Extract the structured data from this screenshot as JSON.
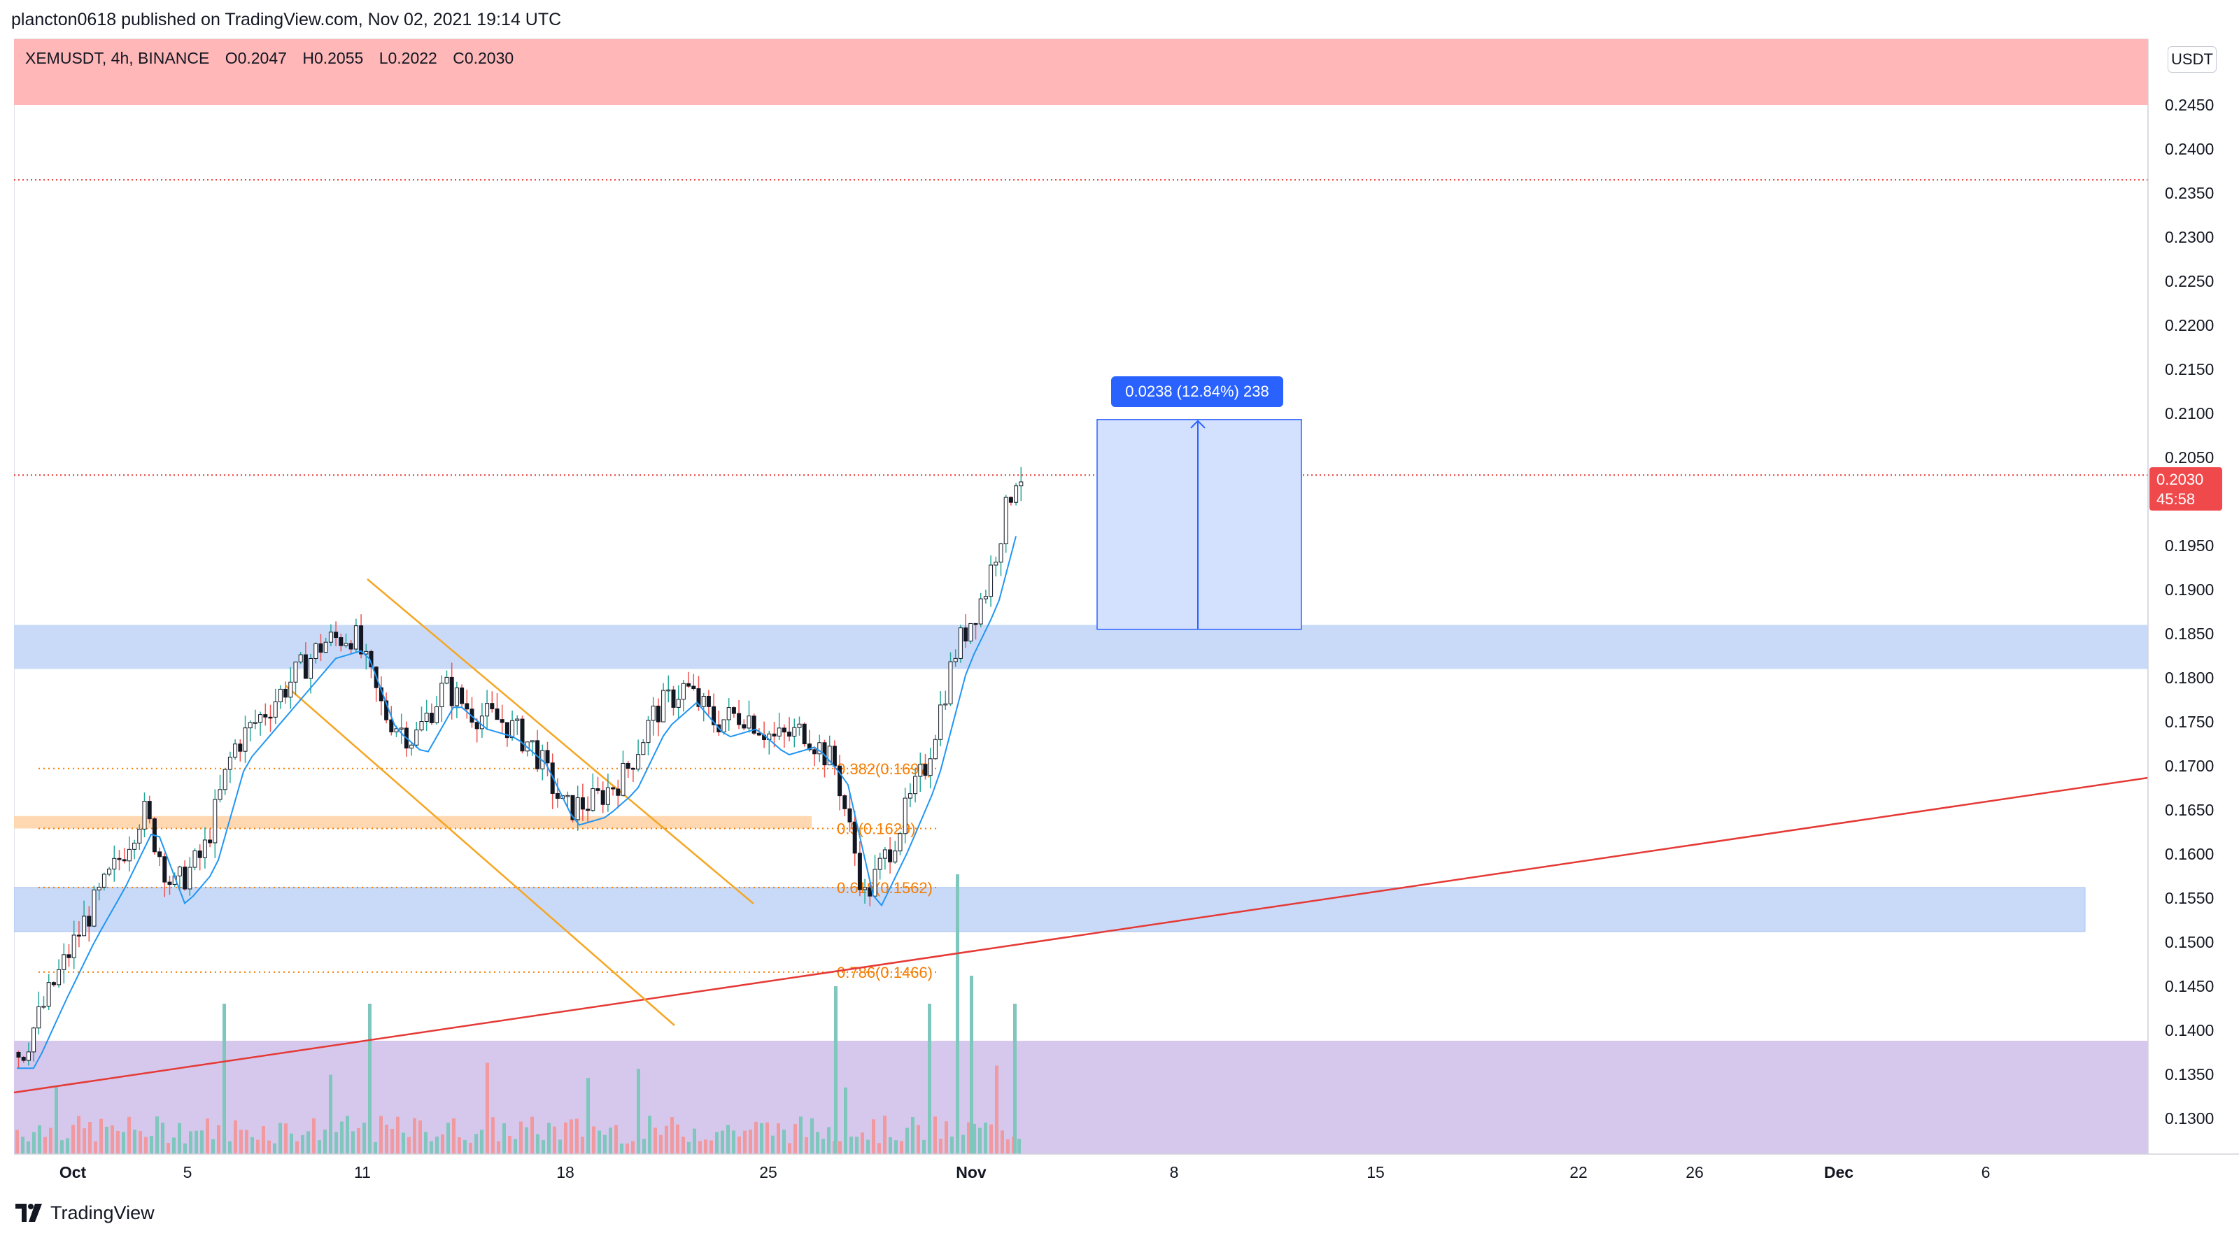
{
  "header": {
    "published": "plancton0618 published on TradingView.com, Nov 02, 2021 19:14 UTC"
  },
  "legend": {
    "symbol": "XEMUSDT, 4h, BINANCE",
    "open": "O0.2047",
    "high": "H0.2055",
    "low": "L0.2022",
    "close": "C0.2030"
  },
  "price_scale": {
    "currency": "USDT",
    "ticks": [
      "0.2450",
      "0.2400",
      "0.2350",
      "0.2300",
      "0.2250",
      "0.2200",
      "0.2150",
      "0.2100",
      "0.2050",
      "0.1950",
      "0.1900",
      "0.1850",
      "0.1800",
      "0.1750",
      "0.1700",
      "0.1650",
      "0.1600",
      "0.1550",
      "0.1500",
      "0.1450",
      "0.1400",
      "0.1350",
      "0.1300"
    ],
    "last_price": "0.2030",
    "countdown": "45:58",
    "last_price_color": "#f0494c"
  },
  "time_axis": {
    "labels": [
      "Oct",
      "5",
      "11",
      "18",
      "25",
      "Nov",
      "8",
      "15",
      "22",
      "26",
      "Dec",
      "6"
    ]
  },
  "measure": {
    "label": "0.0238 (12.84%) 238"
  },
  "fib_levels": [
    {
      "label": "0.382(0.1697)",
      "price": 0.1697
    },
    {
      "label": "0.5(0.1629)",
      "price": 0.1629
    },
    {
      "label": "0.618(0.1562)",
      "price": 0.1562
    },
    {
      "label": "0.786(0.1466)",
      "price": 0.1466
    }
  ],
  "zones": {
    "resistance_color": "#ffb7b8",
    "support_color": "#c9daf8",
    "volume_zone_color": "#d6c8ec",
    "fib_color": "#f57c00",
    "trendline_color": "#e53935",
    "ma_color": "#2196f3",
    "wedge_color": "#f5a623"
  },
  "footer": {
    "brand": "TradingView"
  },
  "chart_data": {
    "type": "candlestick",
    "symbol": "XEMUSDT",
    "timeframe": "4h",
    "exchange": "BINANCE",
    "ylim": [
      0.127,
      0.249
    ],
    "grid": false,
    "close_path": [
      [
        "Sep 29",
        0.1375
      ],
      [
        "Oct 1",
        0.145
      ],
      [
        "Oct 2",
        0.152
      ],
      [
        "Oct 3",
        0.158
      ],
      [
        "Oct 4",
        0.165
      ],
      [
        "Oct 5",
        0.156
      ],
      [
        "Oct 6",
        0.16
      ],
      [
        "Oct 7",
        0.172
      ],
      [
        "Oct 8",
        0.176
      ],
      [
        "Oct 9",
        0.18
      ],
      [
        "Oct 10",
        0.184
      ],
      [
        "Oct 11",
        0.185
      ],
      [
        "Oct 12",
        0.176
      ],
      [
        "Oct 13",
        0.173
      ],
      [
        "Oct 14",
        0.179
      ],
      [
        "Oct 15",
        0.176
      ],
      [
        "Oct 16",
        0.175
      ],
      [
        "Oct 17",
        0.172
      ],
      [
        "Oct 18",
        0.165
      ],
      [
        "Oct 19",
        0.166
      ],
      [
        "Oct 20",
        0.169
      ],
      [
        "Oct 21",
        0.176
      ],
      [
        "Oct 22",
        0.179
      ],
      [
        "Oct 23",
        0.175
      ],
      [
        "Oct 24",
        0.176
      ],
      [
        "Oct 25",
        0.173
      ],
      [
        "Oct 26",
        0.174
      ],
      [
        "Oct 27",
        0.17
      ],
      [
        "Oct 28",
        0.155
      ],
      [
        "Oct 29",
        0.162
      ],
      [
        "Oct 30",
        0.17
      ],
      [
        "Oct 31",
        0.183
      ],
      [
        "Nov 1",
        0.19
      ],
      [
        "Nov 2",
        0.203
      ]
    ],
    "annotations": {
      "resistance_zone": [
        0.245,
        0.253
      ],
      "resistance_line": 0.2365,
      "current_line": 0.203,
      "support_zone_high": [
        0.181,
        0.186
      ],
      "support_zone_low": [
        0.1512,
        0.1562
      ],
      "fib_zone_orange": [
        0.1629,
        0.1643
      ],
      "measure_from": 0.1855,
      "measure_to": 0.2093
    }
  }
}
